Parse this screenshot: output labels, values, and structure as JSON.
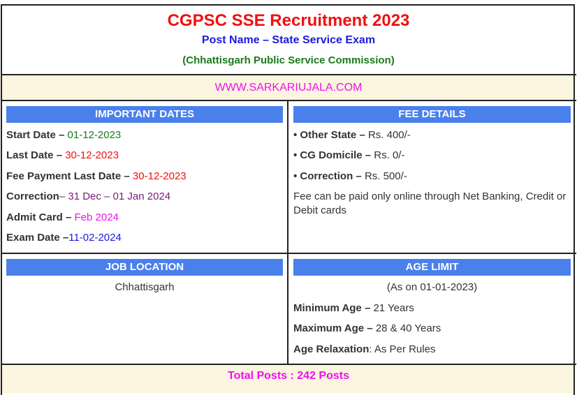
{
  "header": {
    "title": "CGPSC SSE Recruitment 2023",
    "post_name": "Post Name – State Service Exam",
    "organization": "(Chhattisgarh Public Service Commission)"
  },
  "website": "WWW.SARKARIUJALA.COM",
  "important_dates": {
    "heading": "IMPORTANT DATES",
    "items": [
      {
        "label": "Start Date – ",
        "value": "01-12-2023",
        "color": "#1a7a1a"
      },
      {
        "label": "Last Date – ",
        "value": "30-12-2023",
        "color": "#f01010"
      },
      {
        "label": "Fee Payment Last Date – ",
        "value": "30-12-2023",
        "color": "#f01010"
      },
      {
        "label": "Correction",
        "value": "– 31 Dec – 01 Jan 2024",
        "color": "#7a1a7a"
      },
      {
        "label": "Admit Card – ",
        "value": "Feb 2024",
        "color": "#f010f0"
      },
      {
        "label": "Exam Date –",
        "value": "11-02-2024",
        "color": "#1a1adf"
      }
    ]
  },
  "fee_details": {
    "heading": "FEE DETAILS",
    "items": [
      {
        "label": "• Other State – ",
        "value": "Rs. 400/-"
      },
      {
        "label": "• CG Domicile  – ",
        "value": "Rs. 0/-"
      },
      {
        "label": "• Correction  – ",
        "value": "Rs. 500/-"
      }
    ],
    "note": "Fee can be paid only online through Net Banking, Credit or Debit cards"
  },
  "job_location": {
    "heading": "JOB LOCATION",
    "value": "Chhattisgarh"
  },
  "age_limit": {
    "heading": "AGE LIMIT",
    "as_on": "(As on 01-01-2023)",
    "items": [
      {
        "label": "Minimum Age – ",
        "value": "21 Years"
      },
      {
        "label": "Maximum Age – ",
        "value": "28 & 40 Years"
      },
      {
        "label": "Age Relaxation",
        "value": ": As Per Rules"
      }
    ]
  },
  "total_posts": "Total Posts : 242 Posts"
}
